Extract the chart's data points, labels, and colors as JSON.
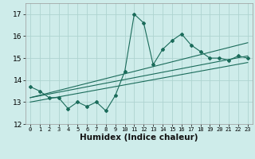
{
  "xlabel": "Humidex (Indice chaleur)",
  "bg_color": "#ceecea",
  "grid_color": "#aed4d0",
  "line_color": "#1a6b5a",
  "x_values": [
    0,
    1,
    2,
    3,
    4,
    5,
    6,
    7,
    8,
    9,
    10,
    11,
    12,
    13,
    14,
    15,
    16,
    17,
    18,
    19,
    20,
    21,
    22,
    23
  ],
  "y_values": [
    13.7,
    13.5,
    13.2,
    13.2,
    12.7,
    13.0,
    12.8,
    13.0,
    12.6,
    13.3,
    14.4,
    17.0,
    16.6,
    14.7,
    15.4,
    15.8,
    16.1,
    15.6,
    15.3,
    15.0,
    15.0,
    14.9,
    15.1,
    15.0
  ],
  "ylim": [
    12.0,
    17.5
  ],
  "xlim": [
    -0.5,
    23.5
  ],
  "yticks": [
    12,
    13,
    14,
    15,
    16,
    17
  ],
  "xticks": [
    0,
    1,
    2,
    3,
    4,
    5,
    6,
    7,
    8,
    9,
    10,
    11,
    12,
    13,
    14,
    15,
    16,
    17,
    18,
    19,
    20,
    21,
    22,
    23
  ],
  "env_left_x": 0,
  "env_left_y": 13.2,
  "env_right_x": 23,
  "env_upper_right_y": 15.7,
  "env_middle_right_y": 15.1,
  "env_lower_right_y": 14.8,
  "env_middle_left_y": 13.5,
  "env_lower_left_y": 13.0
}
